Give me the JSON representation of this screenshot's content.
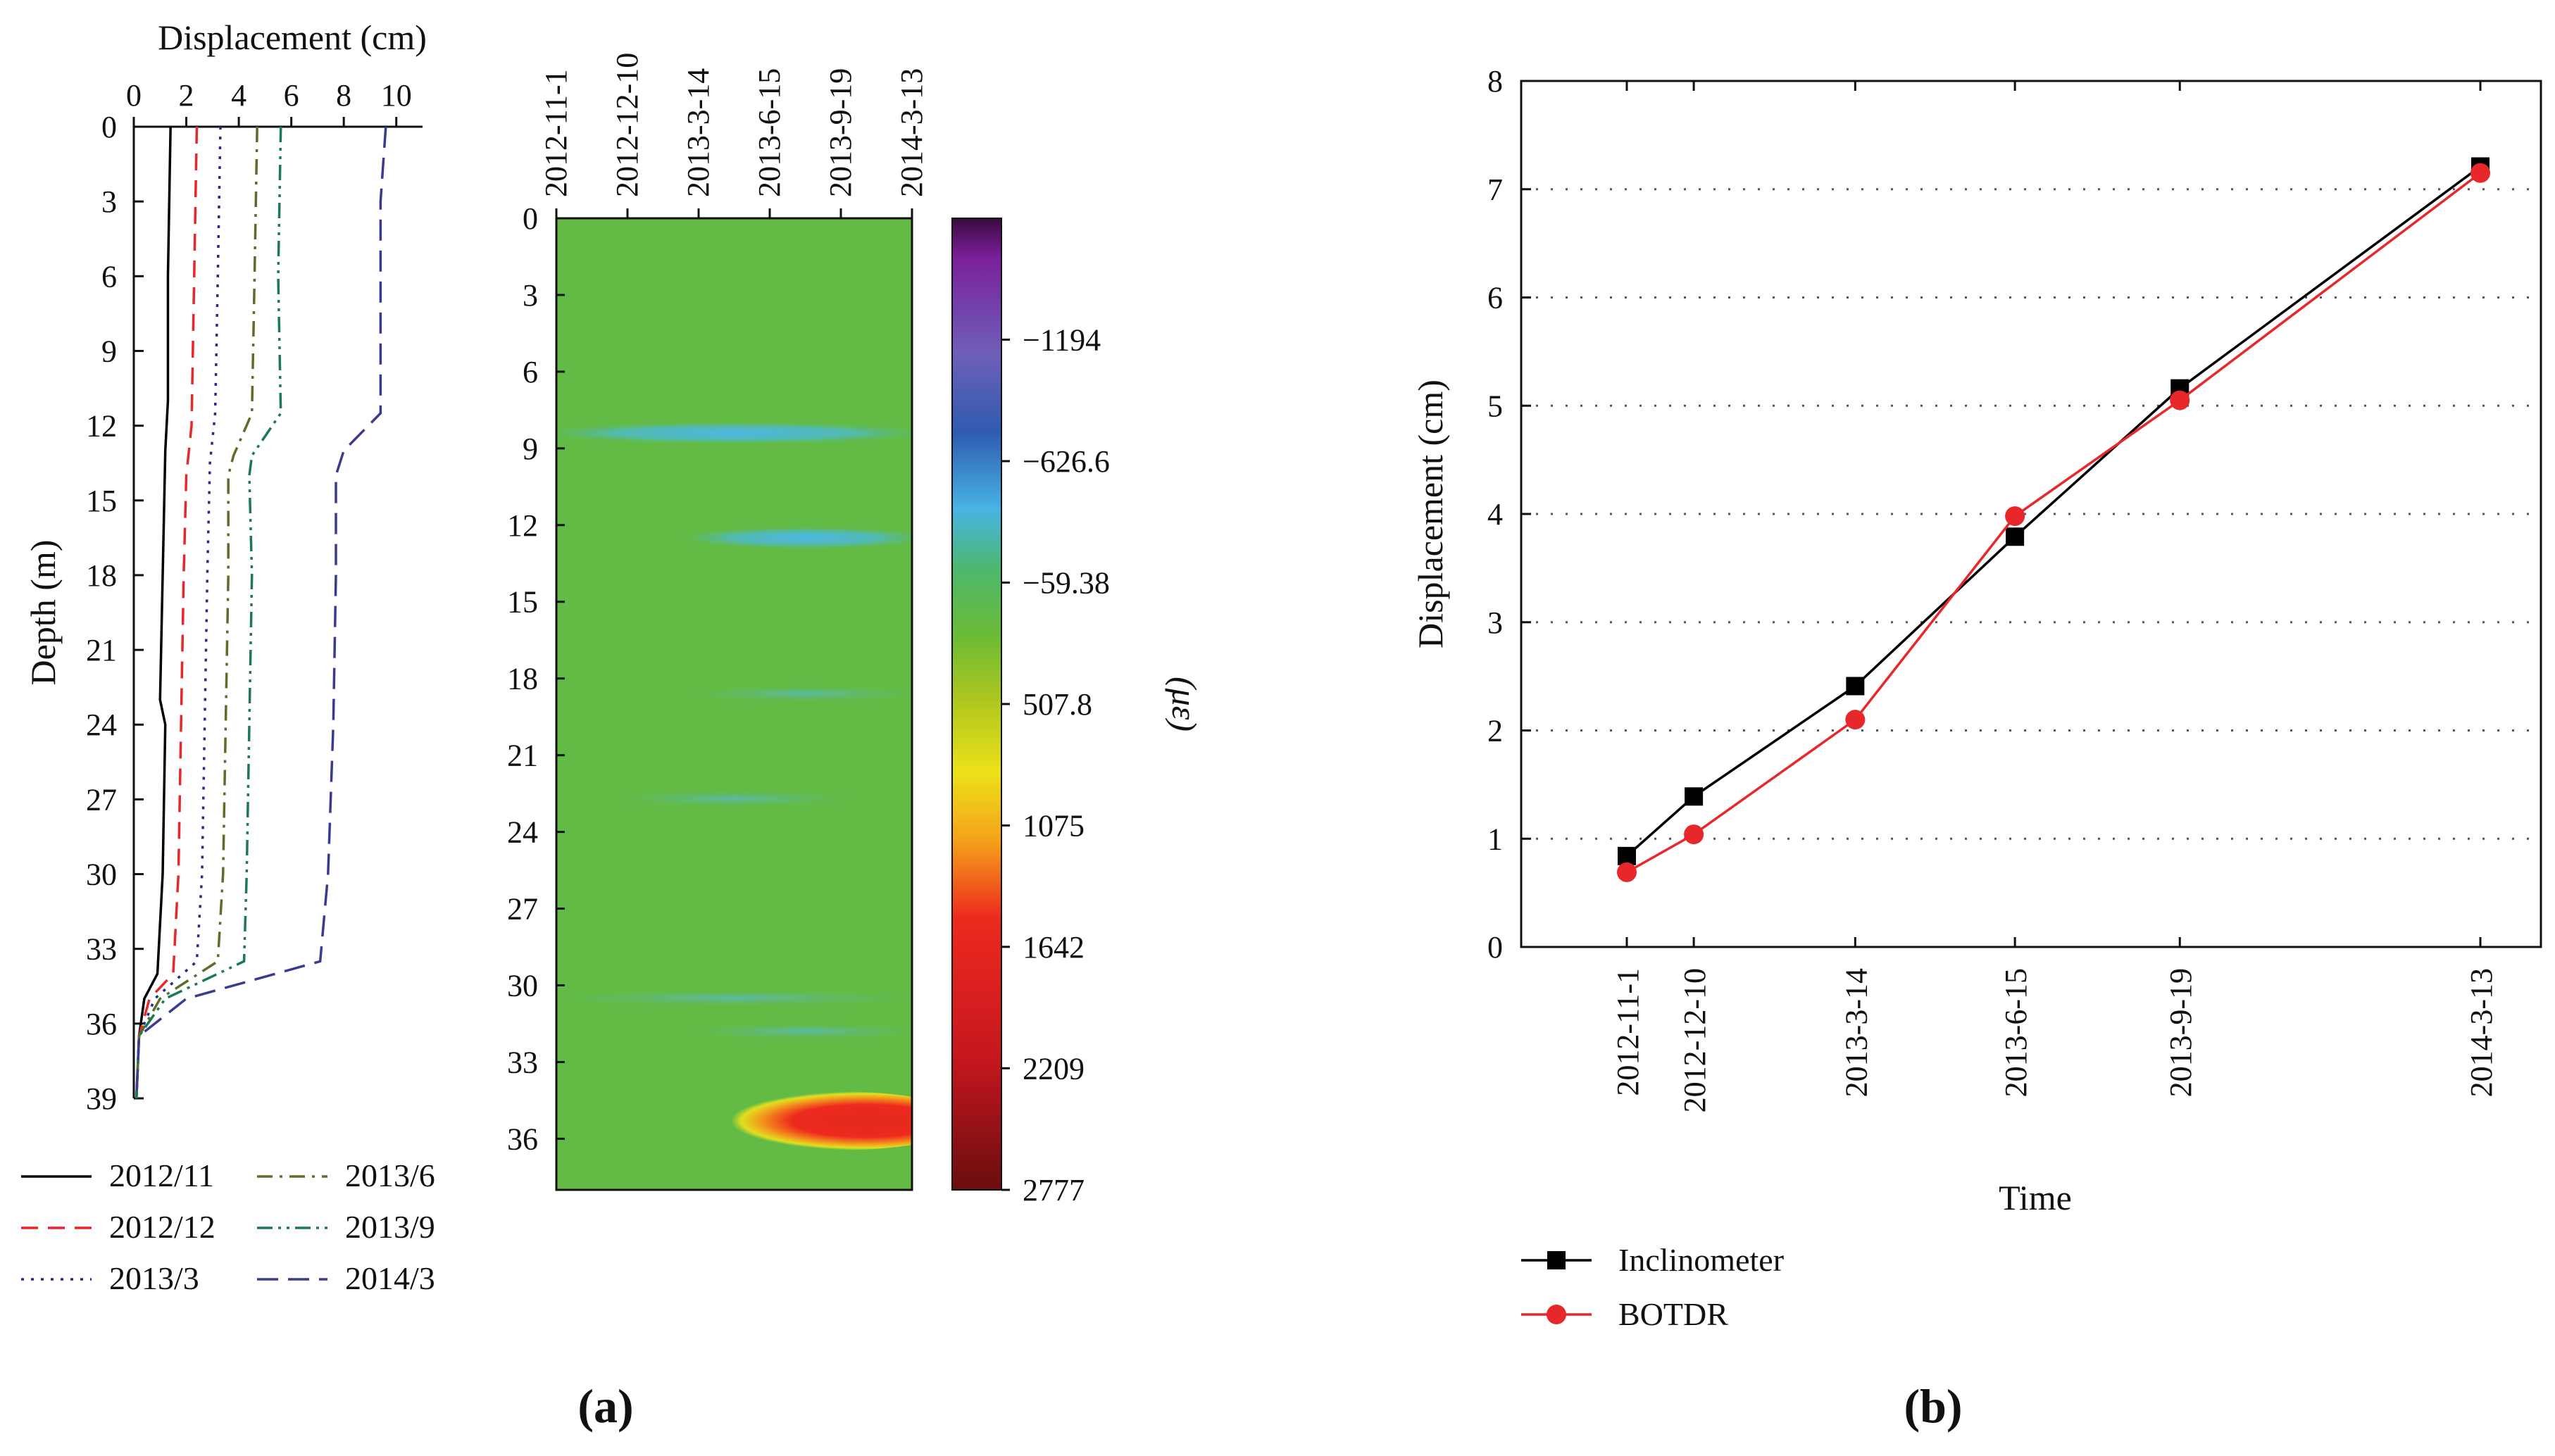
{
  "chart_data": [
    {
      "type": "line",
      "panel": "a-left",
      "title": "",
      "xlabel": "Displacement (cm)",
      "ylabel": "Depth (m)",
      "xlim": [
        0,
        11
      ],
      "ylim": [
        39,
        0
      ],
      "xticks": [
        "0",
        "2",
        "4",
        "6",
        "8",
        "10"
      ],
      "yticks": [
        "0",
        "3",
        "6",
        "9",
        "12",
        "15",
        "18",
        "21",
        "24",
        "27",
        "30",
        "33",
        "36",
        "39"
      ],
      "series": [
        {
          "name": "2012/11",
          "color": "#000000",
          "dash": "solid",
          "points": [
            [
              1.4,
              0
            ],
            [
              1.3,
              6
            ],
            [
              1.3,
              11
            ],
            [
              1.2,
              13
            ],
            [
              1.1,
              18
            ],
            [
              1.0,
              23
            ],
            [
              1.2,
              24
            ],
            [
              1.1,
              30
            ],
            [
              0.9,
              34
            ],
            [
              0.4,
              35
            ],
            [
              0.2,
              36.5
            ],
            [
              0.1,
              39
            ]
          ]
        },
        {
          "name": "2012/12",
          "color": "#e8272a",
          "dash": "dashed",
          "points": [
            [
              2.4,
              0
            ],
            [
              2.3,
              6
            ],
            [
              2.2,
              12
            ],
            [
              2.0,
              14
            ],
            [
              1.9,
              18
            ],
            [
              1.8,
              24
            ],
            [
              1.7,
              30
            ],
            [
              1.5,
              34
            ],
            [
              0.6,
              35
            ],
            [
              0.2,
              36.5
            ],
            [
              0.1,
              39
            ]
          ]
        },
        {
          "name": "2013/3",
          "color": "#2a2a8c",
          "dash": "dotted",
          "points": [
            [
              3.3,
              0
            ],
            [
              3.2,
              6
            ],
            [
              3.1,
              11.5
            ],
            [
              2.9,
              13.5
            ],
            [
              2.8,
              18
            ],
            [
              2.7,
              24
            ],
            [
              2.6,
              30
            ],
            [
              2.4,
              33.5
            ],
            [
              0.8,
              35
            ],
            [
              0.2,
              36.5
            ],
            [
              0.1,
              39
            ]
          ]
        },
        {
          "name": "2013/6",
          "color": "#5b6e2a",
          "dash": "dashdot",
          "points": [
            [
              4.7,
              0
            ],
            [
              4.6,
              6
            ],
            [
              4.5,
              11.5
            ],
            [
              3.8,
              13.2
            ],
            [
              3.6,
              14
            ],
            [
              3.6,
              18
            ],
            [
              3.5,
              24
            ],
            [
              3.4,
              30
            ],
            [
              3.2,
              33.5
            ],
            [
              1.0,
              35
            ],
            [
              0.2,
              36.5
            ],
            [
              0.1,
              39
            ]
          ]
        },
        {
          "name": "2013/9",
          "color": "#1b7a55",
          "dash": "dashdotdot",
          "points": [
            [
              5.6,
              0
            ],
            [
              5.5,
              6
            ],
            [
              5.6,
              11.5
            ],
            [
              4.5,
              13.2
            ],
            [
              4.4,
              14
            ],
            [
              4.5,
              18
            ],
            [
              4.4,
              24
            ],
            [
              4.3,
              30
            ],
            [
              4.2,
              33.5
            ],
            [
              1.2,
              35
            ],
            [
              0.2,
              36.5
            ],
            [
              0.1,
              39
            ]
          ]
        },
        {
          "name": "2014/3",
          "color": "#3a3a92",
          "dash": "longdash",
          "points": [
            [
              9.6,
              0
            ],
            [
              9.4,
              3
            ],
            [
              9.4,
              11.5
            ],
            [
              8.0,
              13
            ],
            [
              7.7,
              14
            ],
            [
              7.7,
              18
            ],
            [
              7.6,
              24
            ],
            [
              7.4,
              30
            ],
            [
              7.1,
              33.5
            ],
            [
              2.0,
              35
            ],
            [
              0.2,
              36.5
            ],
            [
              0.1,
              39
            ]
          ]
        }
      ],
      "legend": "bottom"
    },
    {
      "type": "heatmap",
      "panel": "a-right",
      "title": "",
      "xlabel": "",
      "ylabel": "",
      "x_categories": [
        "2012-11-1",
        "2012-12-10",
        "2013-3-14",
        "2013-6-15",
        "2013-9-19",
        "2014-3-13"
      ],
      "ylim": [
        0,
        38
      ],
      "yticks": [
        "0",
        "3",
        "6",
        "9",
        "12",
        "15",
        "18",
        "21",
        "24",
        "27",
        "30",
        "33",
        "36"
      ],
      "colorbar_label": "(με)",
      "colorbar_ticks": [
        "-1194",
        "-626.6",
        "-59.38",
        "507.8",
        "1075",
        "1642",
        "2209",
        "2777"
      ],
      "colorbar_range": [
        -1761,
        2777
      ],
      "background_value": -59.38,
      "features": [
        {
          "time_from": "2012-11-1",
          "time_to": "2014-3-13",
          "depth": 8.4,
          "value": -500
        },
        {
          "time_from": "2013-3-14",
          "time_to": "2014-3-13",
          "depth": 12.5,
          "value": -520
        },
        {
          "time_from": "2013-3-14",
          "time_to": "2014-3-13",
          "depth": 18.6,
          "value": -250
        },
        {
          "time_from": "2012-12-10",
          "time_to": "2013-9-19",
          "depth": 22.7,
          "value": -220
        },
        {
          "time_from": "2012-11-1",
          "time_to": "2014-3-13",
          "depth": 30.5,
          "value": -180
        },
        {
          "time_from": "2013-3-14",
          "time_to": "2014-3-13",
          "depth": 31.8,
          "value": -250
        },
        {
          "time_from": "2013-3-14",
          "time_to": "2014-3-13",
          "depth": 35.3,
          "value": 1900
        }
      ]
    },
    {
      "type": "line",
      "panel": "b",
      "title": "",
      "xlabel": "Time",
      "ylabel": "Displacement (cm)",
      "x_categories": [
        "2012-11-1",
        "2012-12-10",
        "2013-3-14",
        "2013-6-15",
        "2013-9-19",
        "2014-3-13"
      ],
      "x_days": [
        0,
        39,
        133,
        226,
        322,
        497
      ],
      "ylim": [
        0,
        8
      ],
      "yticks": [
        "0",
        "1",
        "2",
        "3",
        "4",
        "5",
        "6",
        "7",
        "8"
      ],
      "grid": "horizontal dotted",
      "series": [
        {
          "name": "Inclinometer",
          "color": "#000000",
          "marker": "square",
          "values": [
            0.84,
            1.39,
            2.41,
            3.79,
            5.16,
            7.21
          ]
        },
        {
          "name": "BOTDR",
          "color": "#e8272a",
          "marker": "circle",
          "values": [
            0.69,
            1.04,
            2.1,
            3.98,
            5.05,
            7.15
          ]
        }
      ],
      "legend": "bottom-left"
    }
  ],
  "captions": {
    "a": "(a)",
    "b": "(b)"
  }
}
